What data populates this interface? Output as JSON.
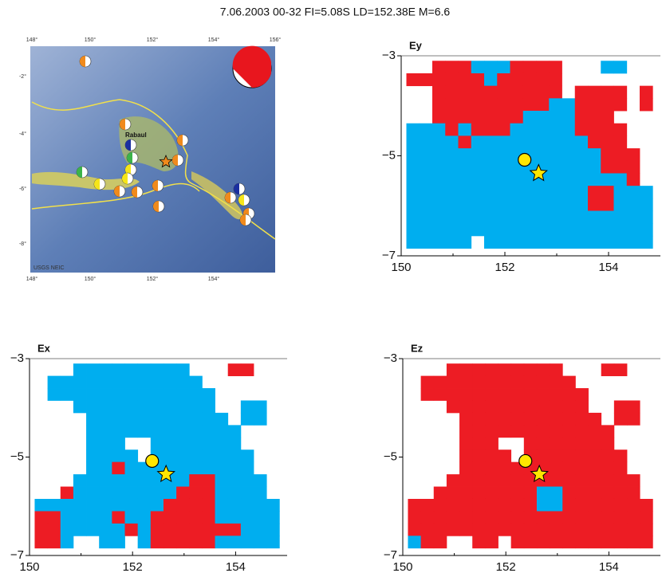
{
  "title": "7.06.2003 00-32  FI=5.08S  LD=152.38E  M=6.6",
  "map": {
    "top_labels": [
      "148°",
      "150°",
      "152°",
      "154°",
      "156°"
    ],
    "left_labels": [
      "-2°",
      "-4°",
      "-6°",
      "-8°"
    ],
    "bottom_labels": [
      "148°",
      "150°",
      "152°",
      "154°"
    ],
    "place": "Rabaul",
    "credit": "USGS NEIC"
  },
  "chart_data": [
    {
      "type": "grid",
      "title": "Ey",
      "xlim": [
        150,
        155
      ],
      "ylim": [
        -7,
        -3
      ],
      "xticks": [
        150,
        152,
        154
      ],
      "yticks": [
        {
          "value": -3,
          "label": "−3"
        },
        {
          "value": -5,
          "label": "−5"
        },
        {
          "value": -7,
          "label": "−7"
        }
      ],
      "epicenter": {
        "x": 152.38,
        "y": -5.08
      },
      "star": {
        "x": 152.65,
        "y": -5.35
      }
    },
    {
      "type": "grid",
      "title": "Ex",
      "xlim": [
        150,
        155
      ],
      "ylim": [
        -7,
        -3
      ],
      "xticks": [
        150,
        152,
        154
      ],
      "yticks": [
        {
          "value": -3,
          "label": "−3"
        },
        {
          "value": -5,
          "label": "−5"
        },
        {
          "value": -7,
          "label": "−7"
        }
      ],
      "epicenter": {
        "x": 152.38,
        "y": -5.08
      },
      "star": {
        "x": 152.65,
        "y": -5.35
      }
    },
    {
      "type": "grid",
      "title": "Ez",
      "xlim": [
        150,
        155
      ],
      "ylim": [
        -7,
        -3
      ],
      "xticks": [
        150,
        152,
        154
      ],
      "yticks": [
        {
          "value": -3,
          "label": "−3"
        },
        {
          "value": -5,
          "label": "−5"
        },
        {
          "value": -7,
          "label": "−7"
        }
      ],
      "epicenter": {
        "x": 152.38,
        "y": -5.08
      },
      "star": {
        "x": 152.65,
        "y": -5.35
      }
    }
  ]
}
